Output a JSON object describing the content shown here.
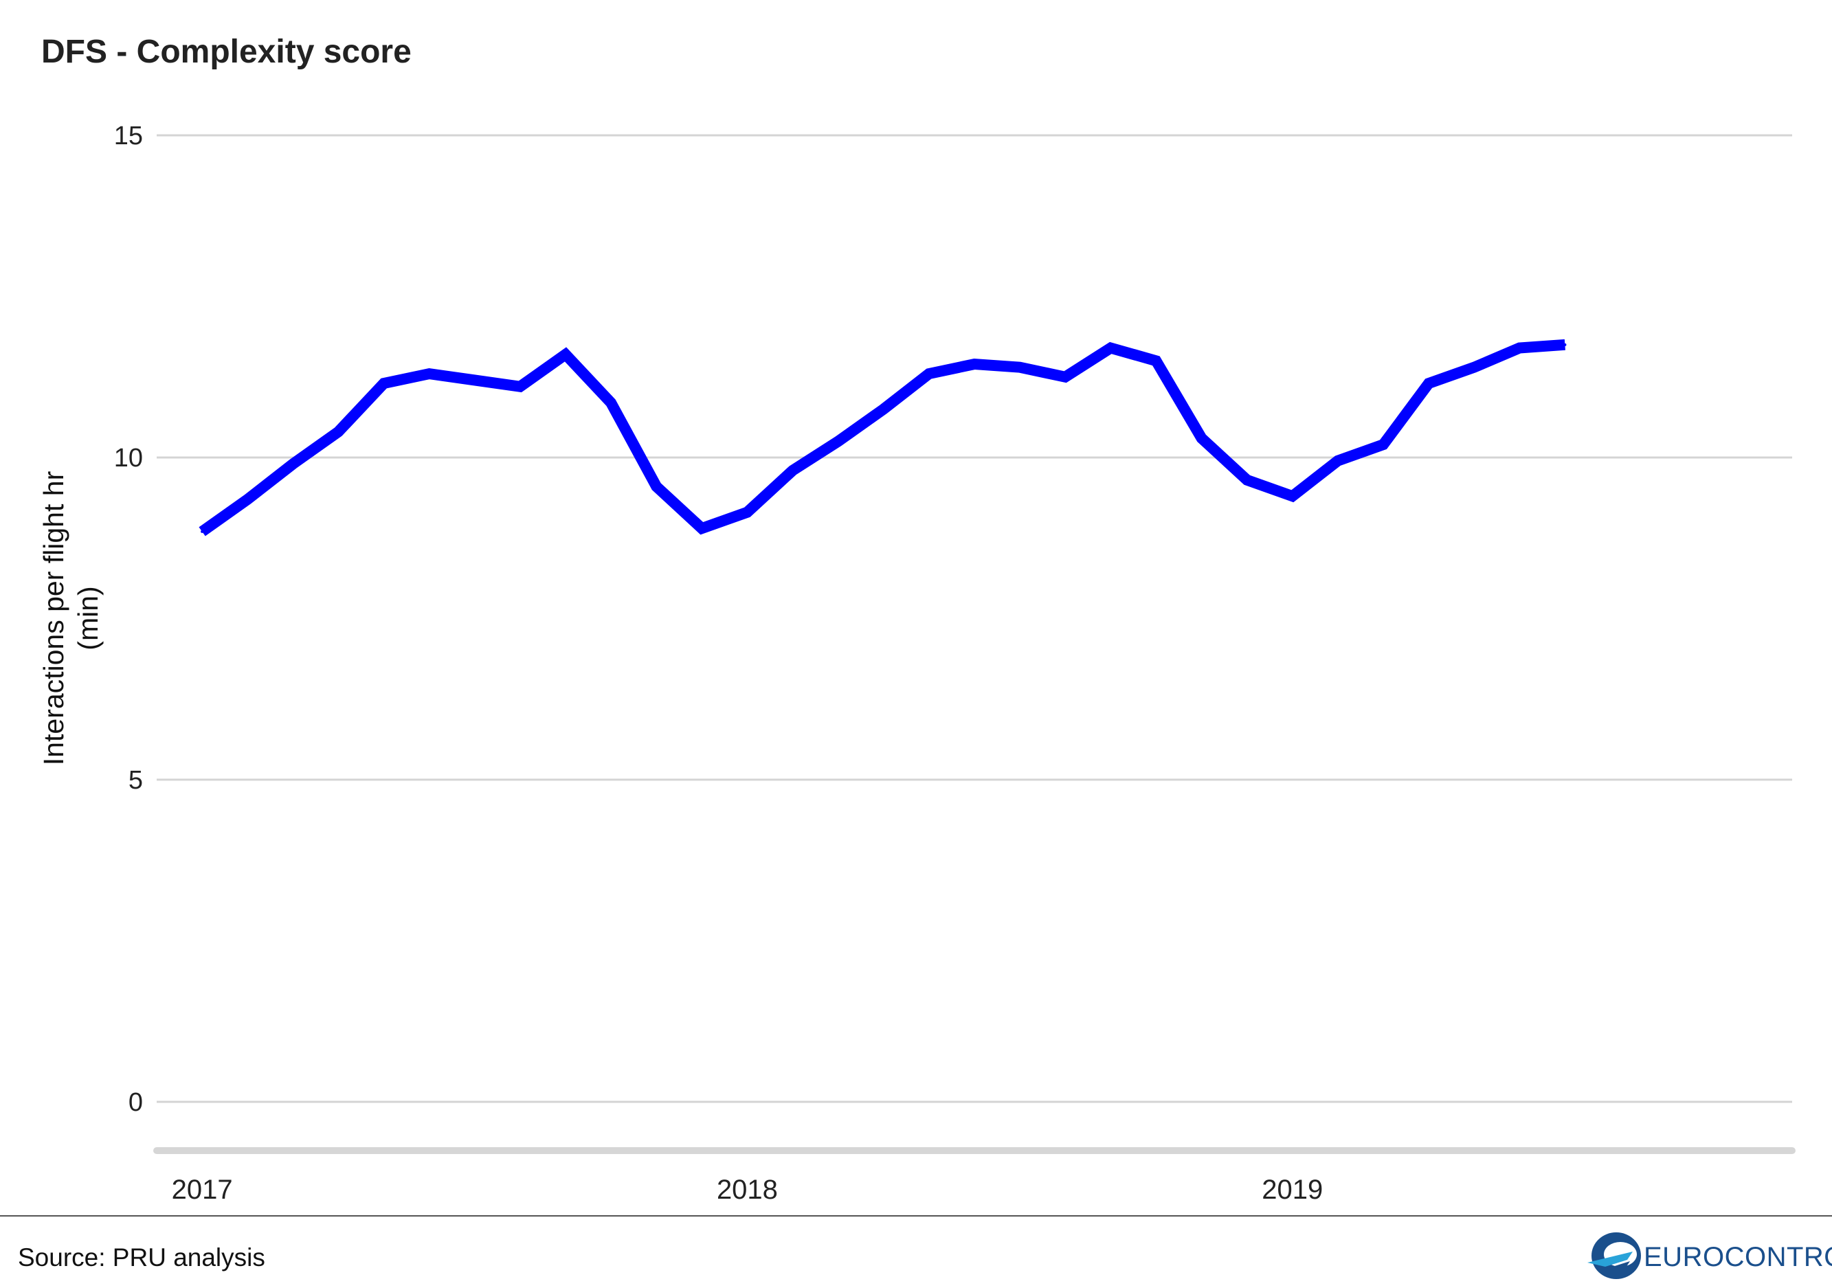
{
  "chart_data": {
    "type": "line",
    "title": "DFS - Complexity score",
    "xlabel": "",
    "ylabel": [
      "Interactions per flight hr",
      "(min)"
    ],
    "ylim": [
      0,
      15
    ],
    "yticks": [
      0,
      5,
      10,
      15
    ],
    "xticks": [
      "2017",
      "2018",
      "2019"
    ],
    "xlim": [
      "2016-12",
      "2019-12"
    ],
    "grid": true,
    "color": "#0000ff",
    "series": [
      {
        "x": [
          "2017-01",
          "2017-02",
          "2017-03",
          "2017-04",
          "2017-05",
          "2017-06",
          "2017-07",
          "2017-08",
          "2017-09",
          "2017-10",
          "2017-11",
          "2017-12",
          "2018-01",
          "2018-02",
          "2018-03",
          "2018-04",
          "2018-05",
          "2018-06",
          "2018-07",
          "2018-08",
          "2018-09",
          "2018-10",
          "2018-11",
          "2018-12",
          "2019-01",
          "2019-02",
          "2019-03",
          "2019-04",
          "2019-05",
          "2019-06",
          "2019-07"
        ],
        "values": [
          8.85,
          9.35,
          9.9,
          10.4,
          11.15,
          11.3,
          11.2,
          11.1,
          11.6,
          10.85,
          9.55,
          8.9,
          9.15,
          9.8,
          10.25,
          10.75,
          11.3,
          11.45,
          11.4,
          11.25,
          11.7,
          11.5,
          10.3,
          9.65,
          9.4,
          9.95,
          10.2,
          11.15,
          11.4,
          11.7,
          11.75
        ]
      }
    ]
  },
  "footer": {
    "source": "Source: PRU analysis",
    "logo_text": "EUROCONTROL",
    "logo_colors": [
      "#1a4f8c",
      "#29a3d9"
    ]
  }
}
